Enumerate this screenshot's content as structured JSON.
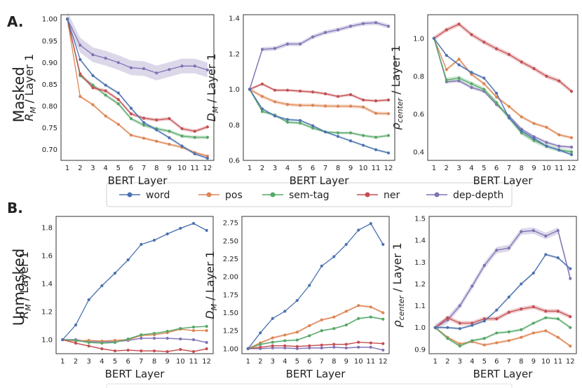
{
  "figure": {
    "section_a_label": "A.",
    "section_b_label": "B.",
    "row_a_label": "Masked",
    "row_b_label": "Unmasked"
  },
  "legend": {
    "items": [
      {
        "name": "word",
        "color": "#4c72b0"
      },
      {
        "name": "pos",
        "color": "#dd8452"
      },
      {
        "name": "sem-tag",
        "color": "#55a868"
      },
      {
        "name": "ner",
        "color": "#c44e52"
      },
      {
        "name": "dep-depth",
        "color": "#8172b3"
      }
    ]
  },
  "chart_data": [
    {
      "type": "line",
      "panel": "masked-rm",
      "ylabel_main": "R",
      "ylabel_sub": "M",
      "ylabel_rest": " / Layer 1",
      "xlabel": "BERT Layer",
      "x": [
        1,
        2,
        3,
        4,
        5,
        6,
        7,
        8,
        9,
        10,
        11,
        12
      ],
      "ylim": [
        0.675,
        1.01
      ],
      "yticks": [
        "0.70",
        "0.75",
        "0.80",
        "0.85",
        "0.90",
        "0.95",
        "1.00"
      ],
      "series": [
        {
          "name": "word",
          "values": [
            1.0,
            0.907,
            0.87,
            0.848,
            0.83,
            0.795,
            0.762,
            0.745,
            0.727,
            0.708,
            0.69,
            0.68
          ],
          "band": 0.003
        },
        {
          "name": "pos",
          "values": [
            1.0,
            0.822,
            0.803,
            0.777,
            0.758,
            0.733,
            0.726,
            0.719,
            0.712,
            0.705,
            0.693,
            0.685
          ],
          "band": 0.003
        },
        {
          "name": "sem-tag",
          "values": [
            1.0,
            0.87,
            0.848,
            0.825,
            0.805,
            0.771,
            0.756,
            0.748,
            0.742,
            0.731,
            0.728,
            0.728
          ],
          "band": 0.004
        },
        {
          "name": "ner",
          "values": [
            1.0,
            0.874,
            0.842,
            0.835,
            0.815,
            0.782,
            0.772,
            0.768,
            0.771,
            0.748,
            0.742,
            0.752
          ],
          "band": 0.004
        },
        {
          "name": "dep-depth",
          "values": [
            1.0,
            0.94,
            0.918,
            0.91,
            0.9,
            0.888,
            0.886,
            0.876,
            0.884,
            0.892,
            0.892,
            0.883
          ],
          "band": 0.017
        }
      ]
    },
    {
      "type": "line",
      "panel": "masked-dm",
      "ylabel_main": "D",
      "ylabel_sub": "M",
      "ylabel_rest": " / Layer 1",
      "xlabel": "BERT Layer",
      "x": [
        1,
        2,
        3,
        4,
        5,
        6,
        7,
        8,
        9,
        10,
        11,
        12
      ],
      "ylim": [
        0.6,
        1.42
      ],
      "yticks": [
        "0.6",
        "0.8",
        "1.0",
        "1.2",
        "1.4"
      ],
      "series": [
        {
          "name": "word",
          "values": [
            1.0,
            0.89,
            0.85,
            0.83,
            0.825,
            0.795,
            0.76,
            0.735,
            0.71,
            0.685,
            0.66,
            0.642
          ],
          "band": 0.006
        },
        {
          "name": "pos",
          "values": [
            1.0,
            0.96,
            0.93,
            0.915,
            0.91,
            0.91,
            0.906,
            0.905,
            0.905,
            0.9,
            0.865,
            0.863
          ],
          "band": 0.01
        },
        {
          "name": "sem-tag",
          "values": [
            1.0,
            0.875,
            0.855,
            0.815,
            0.81,
            0.782,
            0.76,
            0.755,
            0.755,
            0.74,
            0.73,
            0.74
          ],
          "band": 0.008
        },
        {
          "name": "ner",
          "values": [
            1.0,
            1.03,
            0.995,
            0.995,
            0.99,
            0.985,
            0.975,
            0.96,
            0.97,
            0.94,
            0.935,
            0.94
          ],
          "band": 0.008
        },
        {
          "name": "dep-depth",
          "values": [
            1.0,
            1.225,
            1.23,
            1.255,
            1.255,
            1.295,
            1.32,
            1.335,
            1.355,
            1.37,
            1.375,
            1.355
          ],
          "band": 0.012
        }
      ]
    },
    {
      "type": "line",
      "panel": "masked-rho",
      "ylabel_main": "ρ",
      "ylabel_sub": "center",
      "ylabel_rest": " / Layer 1",
      "xlabel": "BERT Layer",
      "x": [
        1,
        2,
        3,
        4,
        5,
        6,
        7,
        8,
        9,
        10,
        11,
        12
      ],
      "ylim": [
        0.355,
        1.125
      ],
      "yticks": [
        "0.4",
        "0.6",
        "0.8",
        "1.0"
      ],
      "series": [
        {
          "name": "word",
          "values": [
            1.0,
            0.91,
            0.86,
            0.82,
            0.79,
            0.71,
            0.58,
            0.51,
            0.47,
            0.43,
            0.41,
            0.385
          ],
          "band": 0.006
        },
        {
          "name": "pos",
          "values": [
            1.0,
            0.835,
            0.89,
            0.81,
            0.76,
            0.69,
            0.64,
            0.585,
            0.55,
            0.53,
            0.49,
            0.475
          ],
          "band": 0.008
        },
        {
          "name": "sem-tag",
          "values": [
            1.0,
            0.78,
            0.79,
            0.76,
            0.73,
            0.66,
            0.58,
            0.5,
            0.46,
            0.43,
            0.41,
            0.4
          ],
          "band": 0.012
        },
        {
          "name": "ner",
          "values": [
            1.0,
            1.045,
            1.075,
            1.02,
            0.98,
            0.945,
            0.915,
            0.875,
            0.84,
            0.8,
            0.775,
            0.72
          ],
          "band": 0.012
        },
        {
          "name": "dep-depth",
          "values": [
            1.0,
            0.77,
            0.775,
            0.74,
            0.72,
            0.65,
            0.59,
            0.52,
            0.48,
            0.45,
            0.43,
            0.425
          ],
          "band": 0.008
        }
      ]
    },
    {
      "type": "line",
      "panel": "unmasked-rm",
      "ylabel_main": "R",
      "ylabel_sub": "M",
      "ylabel_rest": " / Layer 1",
      "xlabel": "BERT Layer",
      "x": [
        1,
        2,
        3,
        4,
        5,
        6,
        7,
        8,
        9,
        10,
        11,
        12
      ],
      "ylim": [
        0.9,
        1.88
      ],
      "yticks": [
        "1.0",
        "1.2",
        "1.4",
        "1.6",
        "1.8"
      ],
      "series": [
        {
          "name": "word",
          "values": [
            1.0,
            1.105,
            1.285,
            1.385,
            1.475,
            1.57,
            1.68,
            1.71,
            1.755,
            1.795,
            1.83,
            1.78
          ],
          "band": 0.004
        },
        {
          "name": "pos",
          "values": [
            1.0,
            0.99,
            0.995,
            0.99,
            0.995,
            1.0,
            1.03,
            1.035,
            1.05,
            1.075,
            1.065,
            1.065
          ],
          "band": 0.005
        },
        {
          "name": "sem-tag",
          "values": [
            1.0,
            0.995,
            0.98,
            0.975,
            0.98,
            1.005,
            1.035,
            1.045,
            1.06,
            1.08,
            1.09,
            1.095
          ],
          "band": 0.005
        },
        {
          "name": "ner",
          "values": [
            1.0,
            0.975,
            0.955,
            0.935,
            0.92,
            0.925,
            0.92,
            0.92,
            0.915,
            0.93,
            0.915,
            0.935
          ],
          "band": 0.005
        },
        {
          "name": "dep-depth",
          "values": [
            1.0,
            1.0,
            0.985,
            0.985,
            0.985,
            0.995,
            1.01,
            1.01,
            1.01,
            1.005,
            1.0,
            0.98
          ],
          "band": 0.005
        }
      ]
    },
    {
      "type": "line",
      "panel": "unmasked-dm",
      "ylabel_main": "D",
      "ylabel_sub": "M",
      "ylabel_rest": " / Layer 1",
      "xlabel": "BERT Layer",
      "x": [
        1,
        2,
        3,
        4,
        5,
        6,
        7,
        8,
        9,
        10,
        11,
        12
      ],
      "ylim": [
        0.93,
        2.84
      ],
      "yticks": [
        "1.00",
        "1.25",
        "1.50",
        "1.75",
        "2.00",
        "2.25",
        "2.50",
        "2.75"
      ],
      "series": [
        {
          "name": "word",
          "values": [
            1.0,
            1.22,
            1.42,
            1.52,
            1.67,
            1.88,
            2.15,
            2.28,
            2.45,
            2.65,
            2.74,
            2.45
          ],
          "band": 0.006
        },
        {
          "name": "pos",
          "values": [
            1.0,
            1.08,
            1.15,
            1.19,
            1.23,
            1.32,
            1.4,
            1.44,
            1.52,
            1.6,
            1.58,
            1.5
          ],
          "band": 0.015
        },
        {
          "name": "sem-tag",
          "values": [
            1.0,
            1.06,
            1.09,
            1.11,
            1.12,
            1.18,
            1.25,
            1.28,
            1.33,
            1.42,
            1.44,
            1.41
          ],
          "band": 0.012
        },
        {
          "name": "ner",
          "values": [
            1.0,
            1.02,
            1.04,
            1.04,
            1.03,
            1.04,
            1.05,
            1.06,
            1.06,
            1.09,
            1.08,
            1.07
          ],
          "band": 0.008
        },
        {
          "name": "dep-depth",
          "values": [
            1.0,
            1.0,
            1.01,
            1.01,
            1.0,
            1.01,
            1.01,
            1.02,
            1.01,
            1.02,
            1.02,
            0.98
          ],
          "band": 0.008
        }
      ]
    },
    {
      "type": "line",
      "panel": "unmasked-rho",
      "ylabel_main": "ρ",
      "ylabel_sub": "center",
      "ylabel_rest": " / Layer 1",
      "xlabel": "BERT Layer",
      "x": [
        1,
        2,
        3,
        4,
        5,
        6,
        7,
        8,
        9,
        10,
        11,
        12
      ],
      "ylim": [
        0.88,
        1.51
      ],
      "yticks": [
        "0.9",
        "1.0",
        "1.1",
        "1.2",
        "1.3",
        "1.4",
        "1.5"
      ],
      "series": [
        {
          "name": "word",
          "values": [
            1.0,
            1.0,
            0.995,
            1.01,
            1.03,
            1.08,
            1.14,
            1.2,
            1.25,
            1.335,
            1.32,
            1.27
          ],
          "band": 0.005
        },
        {
          "name": "pos",
          "values": [
            1.0,
            0.955,
            0.925,
            0.935,
            0.92,
            0.93,
            0.94,
            0.955,
            0.975,
            0.985,
            0.955,
            0.915
          ],
          "band": 0.006
        },
        {
          "name": "sem-tag",
          "values": [
            1.0,
            0.95,
            0.915,
            0.94,
            0.95,
            0.975,
            0.98,
            0.99,
            1.02,
            1.045,
            1.04,
            1.0
          ],
          "band": 0.006
        },
        {
          "name": "ner",
          "values": [
            1.0,
            1.045,
            1.02,
            1.02,
            1.04,
            1.04,
            1.07,
            1.085,
            1.095,
            1.075,
            1.075,
            1.05
          ],
          "band": 0.01
        },
        {
          "name": "dep-depth",
          "values": [
            1.0,
            1.035,
            1.1,
            1.19,
            1.285,
            1.355,
            1.365,
            1.44,
            1.445,
            1.42,
            1.445,
            1.225
          ],
          "band": 0.015
        }
      ]
    }
  ]
}
